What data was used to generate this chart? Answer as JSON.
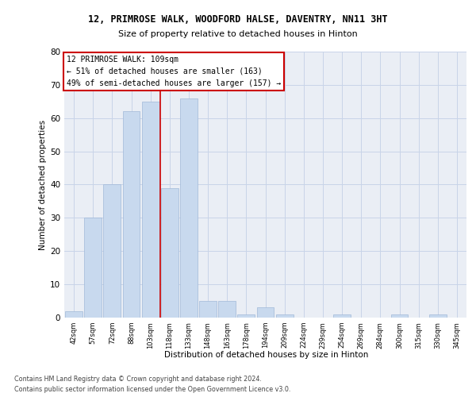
{
  "title_line1": "12, PRIMROSE WALK, WOODFORD HALSE, DAVENTRY, NN11 3HT",
  "title_line2": "Size of property relative to detached houses in Hinton",
  "xlabel": "Distribution of detached houses by size in Hinton",
  "ylabel": "Number of detached properties",
  "bins": [
    "42sqm",
    "57sqm",
    "72sqm",
    "88sqm",
    "103sqm",
    "118sqm",
    "133sqm",
    "148sqm",
    "163sqm",
    "178sqm",
    "194sqm",
    "209sqm",
    "224sqm",
    "239sqm",
    "254sqm",
    "269sqm",
    "284sqm",
    "300sqm",
    "315sqm",
    "330sqm",
    "345sqm"
  ],
  "bar_heights": [
    2,
    30,
    40,
    62,
    65,
    39,
    66,
    5,
    5,
    1,
    3,
    1,
    0,
    0,
    1,
    0,
    0,
    1,
    0,
    1,
    0
  ],
  "bar_color": "#c8d9ee",
  "bar_edge_color": "#a0b8d8",
  "grid_color": "#c8d4e8",
  "background_color": "#eaeef5",
  "vline_x": 4.5,
  "vline_color": "#cc0000",
  "annotation_text": "12 PRIMROSE WALK: 109sqm\n← 51% of detached houses are smaller (163)\n49% of semi-detached houses are larger (157) →",
  "annotation_box_color": "#ffffff",
  "annotation_border_color": "#cc0000",
  "ylim": [
    0,
    80
  ],
  "yticks": [
    0,
    10,
    20,
    30,
    40,
    50,
    60,
    70,
    80
  ],
  "footer_line1": "Contains HM Land Registry data © Crown copyright and database right 2024.",
  "footer_line2": "Contains public sector information licensed under the Open Government Licence v3.0."
}
